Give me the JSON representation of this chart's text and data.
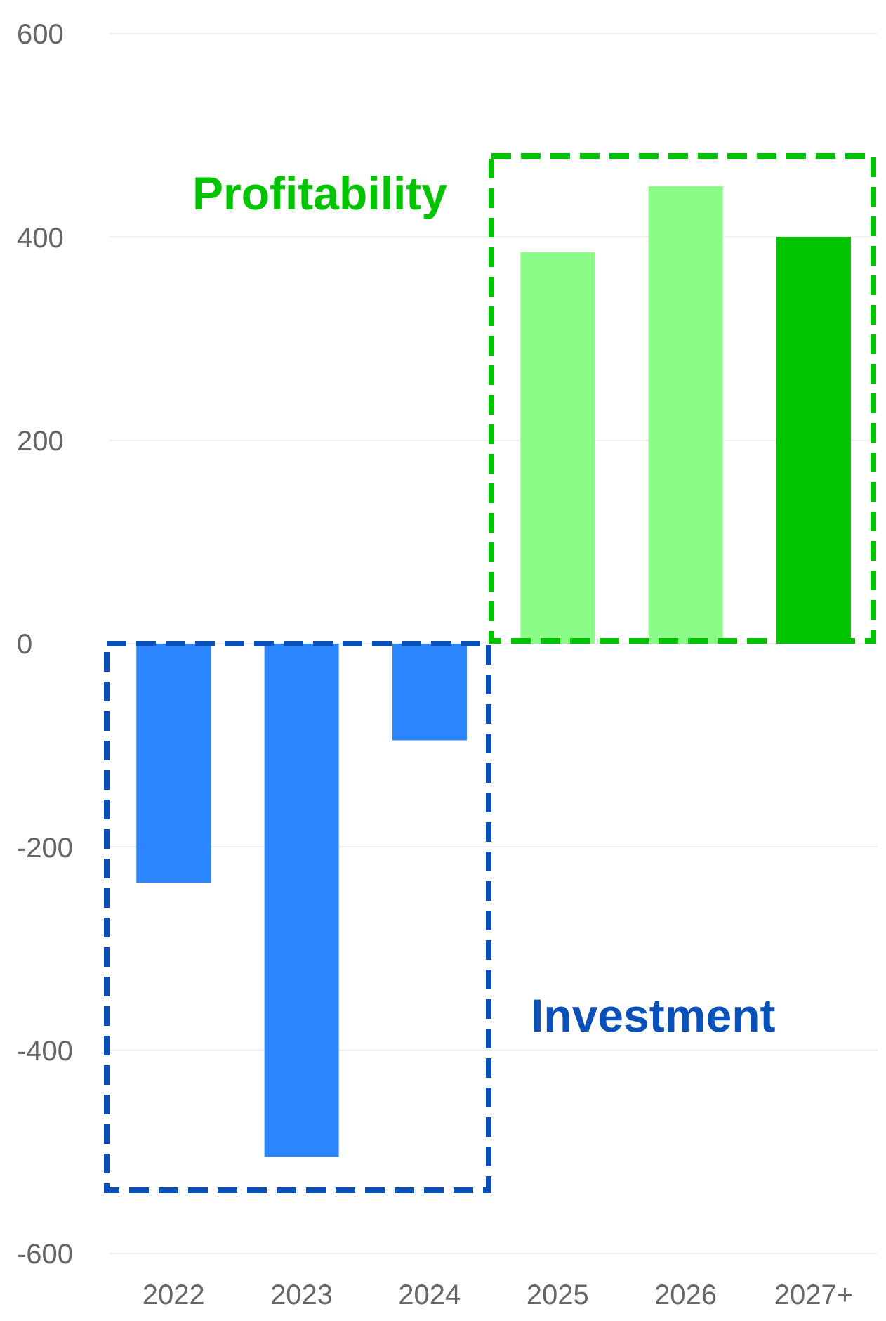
{
  "chart_data": {
    "type": "bar",
    "categories": [
      "2022",
      "2023",
      "2024",
      "2025",
      "2026",
      "2027+"
    ],
    "values": [
      -235,
      -505,
      -95,
      385,
      450,
      400
    ],
    "colors": [
      "#2a85ff",
      "#2a85ff",
      "#2a85ff",
      "#8cfc88",
      "#8cfc88",
      "#00c400"
    ],
    "ylim": [
      -600,
      600
    ],
    "yticks": [
      -600,
      -400,
      -200,
      0,
      200,
      400,
      600
    ],
    "grid": "y",
    "annotations": [
      "Profitability",
      "Investment"
    ]
  }
}
